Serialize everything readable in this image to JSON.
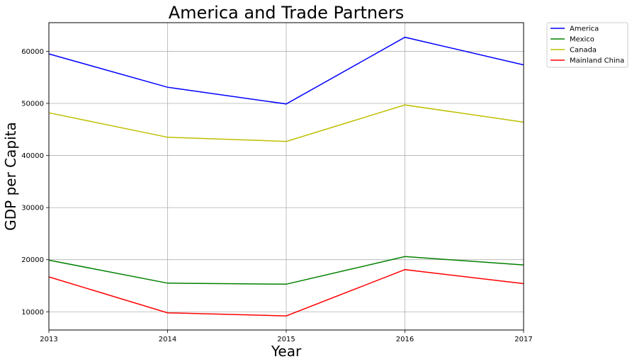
{
  "chart_data": {
    "type": "line",
    "title": "America and Trade Partners",
    "xlabel": "Year",
    "ylabel": "GDP per Capita",
    "x": [
      2013,
      2014,
      2015,
      2016,
      2017
    ],
    "xlim": [
      2013,
      2017
    ],
    "ylim": [
      6500,
      65500
    ],
    "yticks": [
      10000,
      20000,
      30000,
      40000,
      50000,
      60000
    ],
    "xticks": [
      2013,
      2014,
      2015,
      2016,
      2017
    ],
    "grid": true,
    "legend_position": "outside top-right",
    "series": [
      {
        "name": "America",
        "color": "#0000ff",
        "values": [
          59500,
          53100,
          49900,
          62700,
          57400
        ]
      },
      {
        "name": "Mexico",
        "color": "#008000",
        "values": [
          19900,
          15500,
          15300,
          20600,
          19000
        ]
      },
      {
        "name": "Canada",
        "color": "#bfbf00",
        "values": [
          48200,
          43500,
          42700,
          49700,
          46400
        ]
      },
      {
        "name": "Mainland China",
        "color": "#ff0000",
        "values": [
          16700,
          9800,
          9200,
          18100,
          15400
        ]
      }
    ]
  }
}
